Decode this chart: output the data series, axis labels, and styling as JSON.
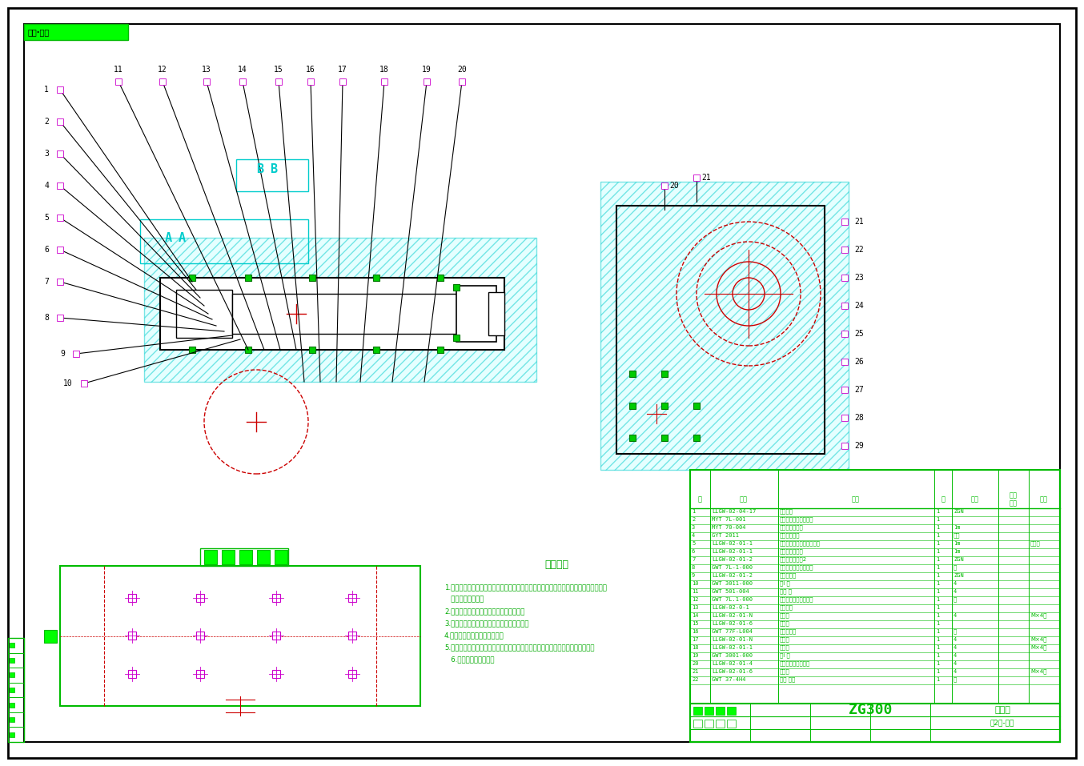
{
  "bg_color": "#ffffff",
  "border_color": "#000000",
  "cyan_color": "#00cccc",
  "red_color": "#cc0000",
  "green_color": "#00cc00",
  "magenta_color": "#cc00cc",
  "technical_requirements_title": "技术要求",
  "technical_requirements_lines": [
    "1.零件在组装后必须清楚地在制定下，不得有毛刺、飞边、氧化皮、锈蚀、切削、磨屑，",
    "   油迹和其他杂物。",
    "2.装配前须对零件，部件的主要尺寸复合。",
    "3.装配过程中不允许击锤、撬、划伤、铜钱。",
    "4.各密封件每装前须涂密封液。",
    "5.装配后对零件，部件的主要配合尺寸，特别是过盈配合尺寸及相关精度进行复查",
    "   6.对材料发多零件备注"
  ],
  "drawing_number": "ZG300",
  "sheet_label": "焊对节",
  "part_number": "总2组-中号"
}
